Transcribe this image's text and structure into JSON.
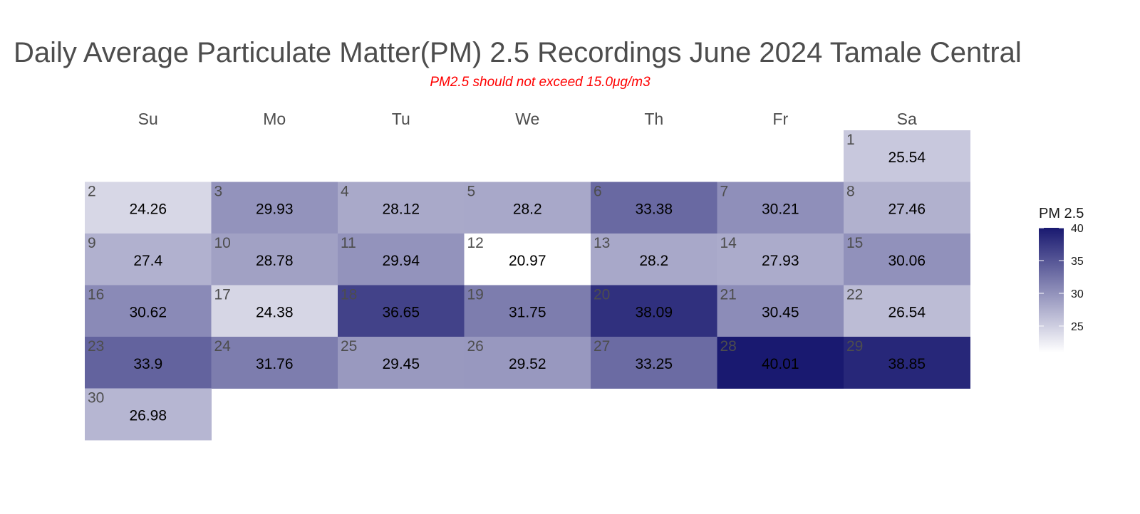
{
  "title": "Daily Average Particulate Matter(PM) 2.5 Recordings June 2024 Tamale Central",
  "subtitle": "PM2.5 should not exceed 15.0μg/m3",
  "chart_data": {
    "type": "heatmap",
    "layout": "calendar",
    "month": "June 2024",
    "weekdays": [
      "Su",
      "Mo",
      "Tu",
      "We",
      "Th",
      "Fr",
      "Sa"
    ],
    "days": [
      {
        "day": 1,
        "value": 25.54
      },
      {
        "day": 2,
        "value": 24.26
      },
      {
        "day": 3,
        "value": 29.93
      },
      {
        "day": 4,
        "value": 28.12
      },
      {
        "day": 5,
        "value": 28.2
      },
      {
        "day": 6,
        "value": 33.38
      },
      {
        "day": 7,
        "value": 30.21
      },
      {
        "day": 8,
        "value": 27.46
      },
      {
        "day": 9,
        "value": 27.4
      },
      {
        "day": 10,
        "value": 28.78
      },
      {
        "day": 11,
        "value": 29.94
      },
      {
        "day": 12,
        "value": 20.97
      },
      {
        "day": 13,
        "value": 28.2
      },
      {
        "day": 14,
        "value": 27.93
      },
      {
        "day": 15,
        "value": 30.06
      },
      {
        "day": 16,
        "value": 30.62
      },
      {
        "day": 17,
        "value": 24.38
      },
      {
        "day": 18,
        "value": 36.65
      },
      {
        "day": 19,
        "value": 31.75
      },
      {
        "day": 20,
        "value": 38.09
      },
      {
        "day": 21,
        "value": 30.45
      },
      {
        "day": 22,
        "value": 26.54
      },
      {
        "day": 23,
        "value": 33.9
      },
      {
        "day": 24,
        "value": 31.76
      },
      {
        "day": 25,
        "value": 29.45
      },
      {
        "day": 26,
        "value": 29.52
      },
      {
        "day": 27,
        "value": 33.25
      },
      {
        "day": 28,
        "value": 40.01
      },
      {
        "day": 29,
        "value": 38.85
      },
      {
        "day": 30,
        "value": 26.98
      }
    ],
    "legend": {
      "title": "PM 2.5",
      "ticks": [
        25,
        30,
        35,
        40
      ],
      "range": [
        20.97,
        40.01
      ],
      "low_color": "#ffffff",
      "high_color": "#191970"
    }
  }
}
